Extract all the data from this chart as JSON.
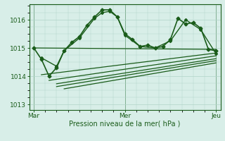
{
  "bg_color": "#d8eee8",
  "grid_color": "#b0d4c8",
  "line_color": "#1a5c1a",
  "xlabel": "Pression niveau de la mer( hPa )",
  "xtick_labels": [
    "Mar",
    "Mer",
    "Jeu"
  ],
  "xtick_positions": [
    0,
    1,
    2
  ],
  "ylim": [
    1012.8,
    1016.55
  ],
  "yticks": [
    1013,
    1014,
    1015,
    1016
  ],
  "xlim": [
    -0.05,
    2.05
  ],
  "series": [
    {
      "x": [
        0.0,
        0.083,
        0.167,
        0.25,
        0.333,
        0.417,
        0.5,
        0.583,
        0.667,
        0.75,
        0.833,
        0.917,
        1.0,
        1.083,
        1.167,
        1.25,
        1.333,
        1.417,
        1.5,
        1.583,
        1.667,
        1.75,
        1.833,
        1.917,
        2.0
      ],
      "y": [
        1015.0,
        1014.6,
        1014.0,
        1014.3,
        1014.9,
        1015.2,
        1015.4,
        1015.8,
        1016.1,
        1016.35,
        1016.35,
        1016.1,
        1015.5,
        1015.3,
        1015.05,
        1015.1,
        1015.0,
        1015.05,
        1015.3,
        1016.05,
        1015.85,
        1015.9,
        1015.7,
        1014.95,
        1014.9
      ],
      "marker": "D",
      "markersize": 2.5,
      "linewidth": 1.2
    },
    {
      "x": [
        0.083,
        0.25,
        0.333,
        0.5,
        0.667,
        0.75,
        0.833,
        0.917,
        1.0,
        1.167,
        1.333,
        1.5,
        1.667,
        1.833,
        2.0
      ],
      "y": [
        1014.65,
        1014.35,
        1014.9,
        1015.35,
        1016.05,
        1016.25,
        1016.3,
        1016.1,
        1015.45,
        1015.05,
        1015.0,
        1015.25,
        1016.0,
        1015.65,
        1014.8
      ],
      "marker": "D",
      "markersize": 2.0,
      "linewidth": 1.0
    },
    {
      "x": [
        0.0,
        2.0
      ],
      "y": [
        1015.0,
        1014.95
      ],
      "marker": null,
      "linewidth": 0.9
    },
    {
      "x": [
        0.083,
        2.0
      ],
      "y": [
        1014.05,
        1014.82
      ],
      "marker": null,
      "linewidth": 0.9
    },
    {
      "x": [
        0.167,
        2.0
      ],
      "y": [
        1013.85,
        1014.72
      ],
      "marker": null,
      "linewidth": 0.9
    },
    {
      "x": [
        0.25,
        2.0
      ],
      "y": [
        1013.73,
        1014.62
      ],
      "marker": null,
      "linewidth": 0.9
    },
    {
      "x": [
        0.25,
        2.0
      ],
      "y": [
        1013.63,
        1014.55
      ],
      "marker": null,
      "linewidth": 0.9
    },
    {
      "x": [
        0.333,
        2.0
      ],
      "y": [
        1013.55,
        1014.47
      ],
      "marker": null,
      "linewidth": 0.9
    }
  ]
}
